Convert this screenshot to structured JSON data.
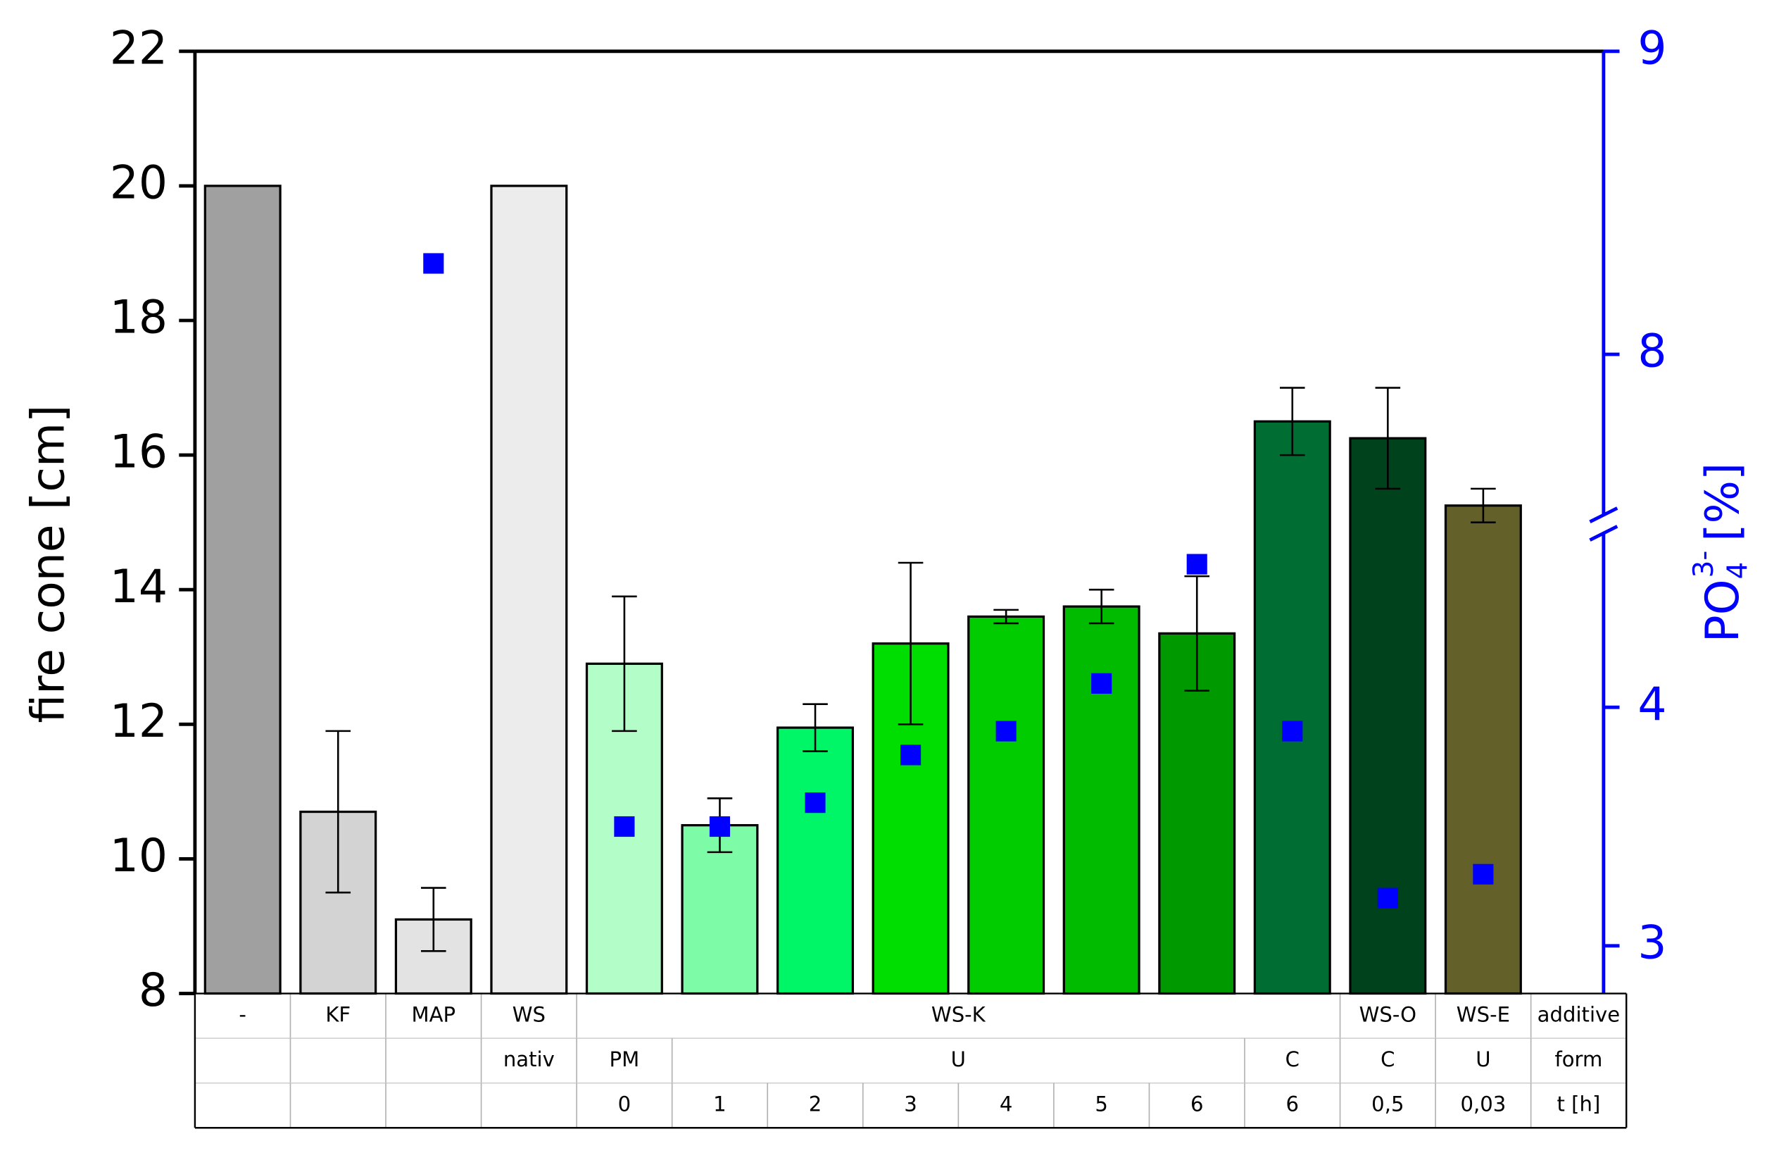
{
  "chart_data": {
    "type": "bar",
    "ylabel": "fire cone [cm]",
    "y2label": {
      "base": "PO",
      "sub": "4",
      "sup": "3-",
      "unit": "[%]"
    },
    "values": [
      20,
      10.7,
      9.1,
      20,
      12.9,
      10.5,
      11.95,
      13.2,
      13.6,
      13.75,
      13.35,
      16.5,
      16.25,
      15.25
    ],
    "errors": [
      null,
      1.2,
      0.47,
      null,
      1.0,
      0.4,
      0.35,
      1.2,
      0.1,
      0.25,
      0.85,
      0.5,
      0.75,
      0.25
    ],
    "colors": [
      "#a0a0a0",
      "#d3d3d3",
      "#e3e3e3",
      "#ececec",
      "#b3fdc9",
      "#7efba6",
      "#00f666",
      "#00dd00",
      "#00cc00",
      "#00bb00",
      "#009900",
      "#006d33",
      "#00421c",
      "#636129"
    ],
    "points": {
      "axis": "y2",
      "color": "#0000ff",
      "values": [
        null,
        null,
        8.3,
        null,
        3.5,
        3.5,
        3.6,
        3.8,
        3.9,
        4.1,
        4.6,
        3.9,
        3.2,
        3.3
      ]
    },
    "ylim": [
      8,
      22
    ],
    "yticks": [
      8,
      10,
      12,
      14,
      16,
      18,
      20,
      22
    ],
    "y2lim": [
      2.8,
      9
    ],
    "y2ticks": [
      3,
      4,
      8,
      9
    ],
    "y2break": [
      4.73,
      7.47
    ],
    "y2color": "#0000ff",
    "table": {
      "columns": 15,
      "rows": [
        [
          {
            "text": "-",
            "start": 0,
            "span": 1
          },
          {
            "text": "KF",
            "start": 1,
            "span": 1
          },
          {
            "text": "MAP",
            "start": 2,
            "span": 1
          },
          {
            "text": "WS",
            "start": 3,
            "span": 1
          },
          {
            "text": "WS-K",
            "start": 4,
            "span": 8
          },
          {
            "text": "WS-O",
            "start": 12,
            "span": 1
          },
          {
            "text": "WS-E",
            "start": 13,
            "span": 1
          },
          {
            "text": "additive",
            "start": 14,
            "span": 1
          }
        ],
        [
          {
            "text": "nativ",
            "start": 3,
            "span": 1
          },
          {
            "text": "PM",
            "start": 4,
            "span": 1
          },
          {
            "text": "U",
            "start": 5,
            "span": 6
          },
          {
            "text": "C",
            "start": 11,
            "span": 1
          },
          {
            "text": "C",
            "start": 12,
            "span": 1
          },
          {
            "text": "U",
            "start": 13,
            "span": 1
          },
          {
            "text": "form",
            "start": 14,
            "span": 1
          }
        ],
        [
          {
            "text": "0",
            "start": 4,
            "span": 1
          },
          {
            "text": "1",
            "start": 5,
            "span": 1
          },
          {
            "text": "2",
            "start": 6,
            "span": 1
          },
          {
            "text": "3",
            "start": 7,
            "span": 1
          },
          {
            "text": "4",
            "start": 8,
            "span": 1
          },
          {
            "text": "5",
            "start": 9,
            "span": 1
          },
          {
            "text": "6",
            "start": 10,
            "span": 1
          },
          {
            "text": "6",
            "start": 11,
            "span": 1
          },
          {
            "text": "0,5",
            "start": 12,
            "span": 1
          },
          {
            "text": "0,03",
            "start": 13,
            "span": 1
          },
          {
            "text": "t [h]",
            "start": 14,
            "span": 1
          }
        ]
      ]
    }
  }
}
